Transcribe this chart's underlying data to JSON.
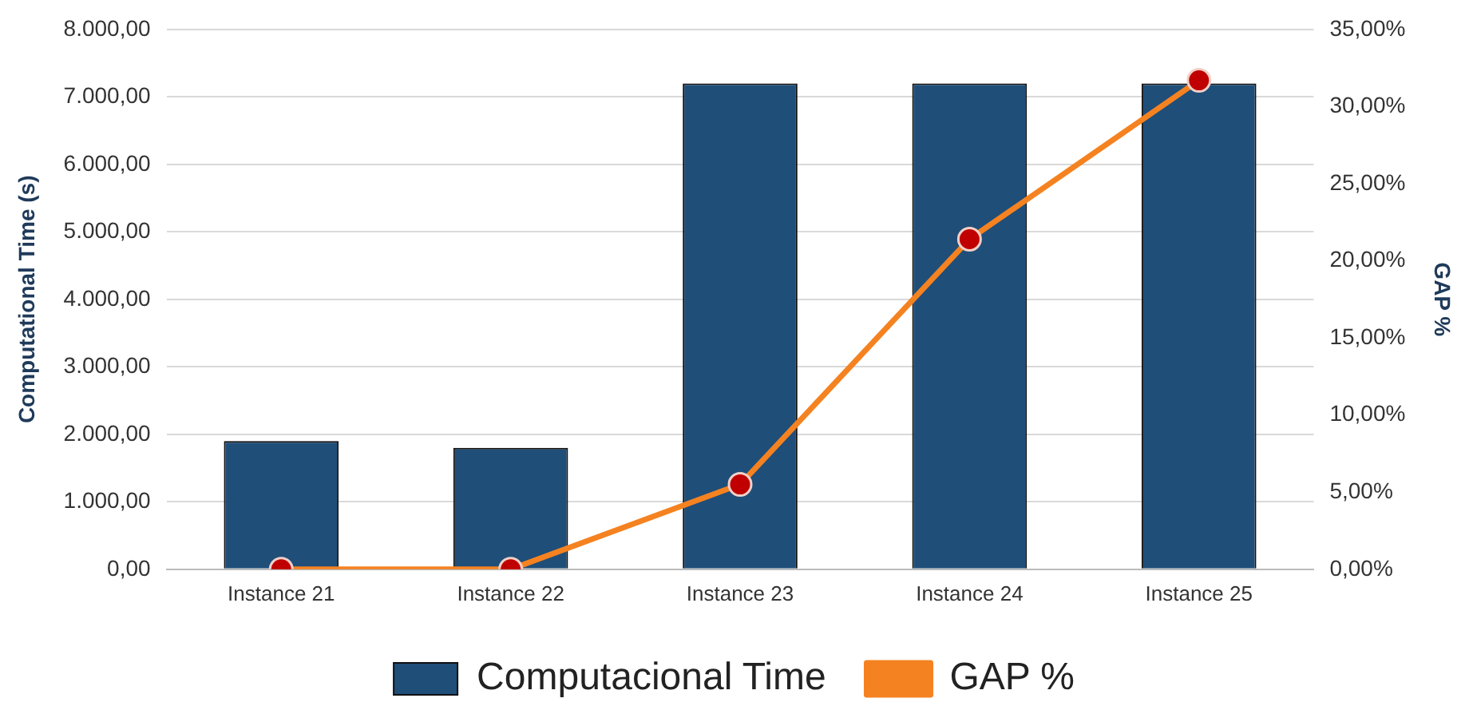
{
  "chart_data": {
    "type": "bar",
    "categories": [
      "Instance 21",
      "Instance 22",
      "Instance 23",
      "Instance 24",
      "Instance 25"
    ],
    "series": [
      {
        "name": "Computacional Time",
        "color": "#1f4e79",
        "values": [
          1900,
          1800,
          7200,
          7200,
          7200
        ]
      },
      {
        "name": "GAP %",
        "type": "line",
        "axis": "y2",
        "color": "#f58220",
        "marker": "circle",
        "values": [
          0,
          0,
          5.5,
          21.4,
          31.7
        ]
      }
    ],
    "ylabel": "Computational Time (s)",
    "y2label": "GAP %",
    "ylim": [
      0,
      8000
    ],
    "yticks": [
      {
        "value": 0,
        "label": "0,00"
      },
      {
        "value": 1000,
        "label": "1.000,00"
      },
      {
        "value": 2000,
        "label": "2.000,00"
      },
      {
        "value": 3000,
        "label": "3.000,00"
      },
      {
        "value": 4000,
        "label": "4.000,00"
      },
      {
        "value": 5000,
        "label": "5.000,00"
      },
      {
        "value": 6000,
        "label": "6.000,00"
      },
      {
        "value": 7000,
        "label": "7.000,00"
      },
      {
        "value": 8000,
        "label": "8.000,00"
      }
    ],
    "y2lim": [
      0,
      35
    ],
    "y2ticks": [
      {
        "value": 0,
        "label": "0,00%"
      },
      {
        "value": 5,
        "label": "5,00%"
      },
      {
        "value": 10,
        "label": "10,00%"
      },
      {
        "value": 15,
        "label": "15,00%"
      },
      {
        "value": 20,
        "label": "20,00%"
      },
      {
        "value": 25,
        "label": "25,00%"
      },
      {
        "value": 30,
        "label": "30,00%"
      },
      {
        "value": 35,
        "label": "35,00%"
      }
    ],
    "grid": "y",
    "legend": "bottom"
  }
}
